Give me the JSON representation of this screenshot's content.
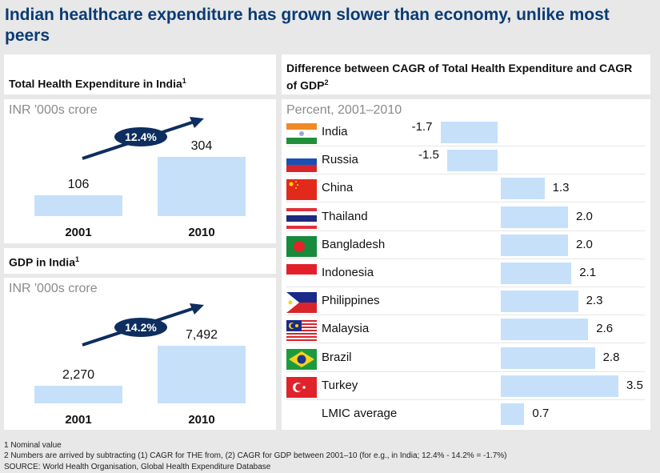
{
  "title": "Indian healthcare expenditure has grown slower than economy, unlike most peers",
  "colors": {
    "title": "#0a3b74",
    "bar": "#c6e0fa",
    "pill": "#0d2e5e"
  },
  "the_panel": {
    "header": "Total Health Expenditure in India",
    "header_sup": "1",
    "unit": "INR '000s crore",
    "cagr": "12.4%"
  },
  "gdp_panel": {
    "header": "GDP in India",
    "header_sup": "1",
    "unit": "INR '000s crore",
    "cagr": "14.2%"
  },
  "diff_panel": {
    "header": "Difference between CAGR of Total Health Expenditure and CAGR of GDP",
    "header_sup": "2",
    "unit": "Percent, 2001–2010"
  },
  "chart_data": [
    {
      "type": "bar",
      "title": "Total Health Expenditure in India",
      "ylabel": "INR '000s crore",
      "categories": [
        "2001",
        "2010"
      ],
      "values": [
        106,
        304
      ],
      "value_labels": [
        "106",
        "304"
      ],
      "annotation": "CAGR 12.4%"
    },
    {
      "type": "bar",
      "title": "GDP in India",
      "ylabel": "INR '000s crore",
      "categories": [
        "2001",
        "2010"
      ],
      "values": [
        2270,
        7492
      ],
      "value_labels": [
        "2,270",
        "7,492"
      ],
      "annotation": "CAGR 14.2%"
    },
    {
      "type": "bar",
      "orientation": "horizontal",
      "title": "Difference between CAGR of Total Health Expenditure and CAGR of GDP",
      "xlabel": "Percent, 2001–2010",
      "categories": [
        "India",
        "Russia",
        "China",
        "Thailand",
        "Bangladesh",
        "Indonesia",
        "Philippines",
        "Malaysia",
        "Brazil",
        "Turkey",
        "LMIC average"
      ],
      "values": [
        -1.7,
        -1.5,
        1.3,
        2.0,
        2.0,
        2.1,
        2.3,
        2.6,
        2.8,
        3.5,
        0.7
      ],
      "value_labels": [
        "-1.7",
        "-1.5",
        "1.3",
        "2.0",
        "2.0",
        "2.1",
        "2.3",
        "2.6",
        "2.8",
        "3.5",
        "0.7"
      ],
      "flags": [
        "india-flag",
        "russia-flag",
        "china-flag",
        "thailand-flag",
        "bangladesh-flag",
        "indonesia-flag",
        "philippines-flag",
        "malaysia-flag",
        "brazil-flag",
        "turkey-flag",
        ""
      ]
    }
  ],
  "footnotes": [
    "1 Nominal value",
    "2 Numbers are arrived by subtracting (1) CAGR for THE from, (2) CAGR for GDP between 2001–10 (for e.g., in India; 12.4% - 14.2% = -1.7%)",
    "SOURCE: World Health Organisation, Global Health Expenditure Database"
  ]
}
